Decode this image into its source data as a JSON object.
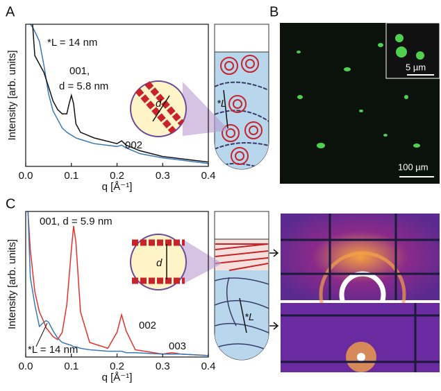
{
  "chart_data": [
    {
      "type": "line",
      "xlabel": "q [Å⁻¹]",
      "ylabel": "Intensity [arb. units]",
      "x": [
        0.01,
        0.015,
        0.02,
        0.03,
        0.04,
        0.05,
        0.06,
        0.07,
        0.08,
        0.09,
        0.095,
        0.1,
        0.105,
        0.11,
        0.12,
        0.15,
        0.2,
        0.21,
        0.22,
        0.25,
        0.3,
        0.35,
        0.4
      ],
      "series": [
        {
          "color": "#3a78b5",
          "values": [
            100,
            98,
            95,
            88,
            71,
            51,
            39,
            33,
            27,
            24,
            23,
            22,
            21,
            20,
            19,
            16,
            14,
            15,
            13,
            9,
            6,
            4,
            2
          ]
        },
        {
          "color": "#111111",
          "values": [
            null,
            100,
            78,
            72,
            66,
            56,
            46,
            40,
            37,
            37,
            44,
            50,
            44,
            30,
            24,
            20,
            16,
            18,
            15,
            11,
            7,
            5,
            3
          ]
        }
      ],
      "xlim": [
        0,
        0.4
      ],
      "xticks": [
        {
          "value": 0,
          "label": "0.0"
        },
        0.1,
        0.2,
        0.3,
        0.4
      ],
      "ylim": [
        0,
        100
      ],
      "annotations": [
        "*L = 14 nm",
        "001,",
        "d = 5.8 nm",
        "002"
      ]
    },
    {
      "type": "line",
      "xlabel": "q [Å⁻¹]",
      "ylabel": "Intensity [arb. units]",
      "x": [
        0.005,
        0.01,
        0.02,
        0.03,
        0.04,
        0.045,
        0.05,
        0.06,
        0.07,
        0.08,
        0.09,
        0.1,
        0.105,
        0.11,
        0.12,
        0.14,
        0.18,
        0.2,
        0.21,
        0.22,
        0.24,
        0.3,
        0.32,
        0.34,
        0.4
      ],
      "series": [
        {
          "color": "#e8302a",
          "values": [
            100,
            74,
            45,
            31,
            24,
            20,
            18,
            14,
            12,
            17,
            36,
            74,
            90,
            79,
            31,
            10,
            6,
            17,
            29,
            18,
            5,
            2,
            3,
            2,
            1
          ]
        },
        {
          "color": "#3a78b5",
          "values": [
            100,
            55,
            36,
            21,
            24,
            25,
            24,
            18,
            13,
            10,
            9,
            8,
            7,
            7,
            6,
            5,
            4,
            4,
            4,
            3,
            3,
            2,
            2,
            2,
            1
          ]
        }
      ],
      "xlim": [
        0,
        0.4
      ],
      "xticks": [
        {
          "value": 0,
          "label": "0.0"
        },
        0.1,
        0.2,
        0.3,
        0.4
      ],
      "ylim": [
        0,
        100
      ],
      "annotations": [
        "001, d = 5.9 nm",
        "002",
        "003",
        "*L = 14 nm"
      ]
    }
  ],
  "figure": {
    "panel_labels": [
      "A",
      "B",
      "C"
    ],
    "schematic_a": [
      "d",
      "*L"
    ],
    "schematic_c": [
      "d",
      "*L"
    ],
    "scale_bars": [
      "5 µm",
      "100 µm"
    ]
  }
}
